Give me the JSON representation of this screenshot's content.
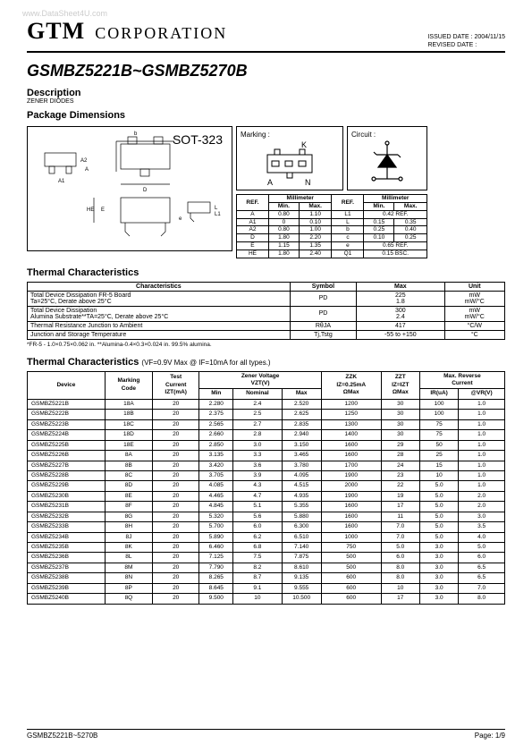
{
  "watermark": "www.DataSheet4U.com",
  "header": {
    "company": "GTM",
    "corporation": "CORPORATION",
    "issued_label": "ISSUED DATE :",
    "issued_date": "2004/11/15",
    "revised_label": "REVISED DATE :"
  },
  "title": "GSMBZ5221B~GSMBZ5270B",
  "description": {
    "heading": "Description",
    "sub": "ZENER DIODES",
    "pkg": "Package Dimensions"
  },
  "package": {
    "sot": "SOT-323",
    "marking_label": "Marking :",
    "marking_k": "K",
    "marking_a": "A",
    "marking_n": "N",
    "circuit_label": "Circuit :"
  },
  "dim_table": {
    "ref": "REF.",
    "mm": "Millimeter",
    "min": "Min.",
    "max": "Max.",
    "rows": [
      [
        "A",
        "0.80",
        "1.10",
        "L1",
        "0.42",
        "REF."
      ],
      [
        "A1",
        "0",
        "0.10",
        "L",
        "0.15",
        "0.35"
      ],
      [
        "A2",
        "0.80",
        "1.00",
        "b",
        "0.25",
        "0.40"
      ],
      [
        "D",
        "1.80",
        "2.20",
        "c",
        "0.10",
        "0.25"
      ],
      [
        "E",
        "1.15",
        "1.35",
        "e",
        "0.65",
        "REF."
      ],
      [
        "HE",
        "1.80",
        "2.40",
        "Q1",
        "0.15 BSC.",
        ""
      ]
    ]
  },
  "thermal1": {
    "heading": "Thermal Characteristics",
    "cols": [
      "Characteristics",
      "Symbol",
      "Max",
      "Unit"
    ],
    "rows": [
      {
        "c": "Total Device Dissipation FR-5 Board\nTa=25°C, Derate above 25°C",
        "s": "PD",
        "m": "225\n1.8",
        "u": "mW\nmW/°C"
      },
      {
        "c": "Total Device Dissipation\nAlumina Substrate**TA=25°C, Derate above 25°C",
        "s": "PD",
        "m": "300\n2.4",
        "u": "mW\nmW/°C"
      },
      {
        "c": "Thermal Resistance Junction to Ambient",
        "s": "RθJA",
        "m": "417",
        "u": "°C/W"
      },
      {
        "c": "Junction and Storage Temperature",
        "s": "Tj,Tstg",
        "m": "-55 to +150",
        "u": "°C"
      }
    ],
    "footnote": "*FR-5 - 1.0×0.75×0.062 in. **Alumina-0.4×0.3×0.024 in. 99.5% alumina."
  },
  "thermal2": {
    "heading": "Thermal Characteristics",
    "subtitle": "(VF=0.9V Max @ IF=10mA for all types.)",
    "head": {
      "device": "Device",
      "marking": "Marking\nCode",
      "test": "Test\nCurrent\nIZT(mA)",
      "zener": "Zener Voltage\nVZT(V)",
      "min": "Min",
      "nom": "Nominal",
      "max": "Max",
      "zzk": "ZZK\nIZ=0.25mA\nΩMax",
      "zzt": "ZZT\nIZ=IZT\nΩMax",
      "rev": "Max. Reverse\nCurrent",
      "ir": "IR(uA)",
      "vr": "@VR(V)"
    },
    "rows": [
      [
        "GSMBZ5221B",
        "18A",
        "20",
        "2.280",
        "2.4",
        "2.520",
        "1200",
        "30",
        "100",
        "1.0"
      ],
      [
        "GSMBZ5222B",
        "18B",
        "20",
        "2.375",
        "2.5",
        "2.625",
        "1250",
        "30",
        "100",
        "1.0"
      ],
      [
        "GSMBZ5223B",
        "18C",
        "20",
        "2.565",
        "2.7",
        "2.835",
        "1300",
        "30",
        "75",
        "1.0"
      ],
      [
        "GSMBZ5224B",
        "18D",
        "20",
        "2.660",
        "2.8",
        "2.940",
        "1400",
        "30",
        "75",
        "1.0"
      ],
      [
        "GSMBZ5225B",
        "18E",
        "20",
        "2.850",
        "3.0",
        "3.150",
        "1600",
        "29",
        "50",
        "1.0"
      ],
      [
        "GSMBZ5226B",
        "8A",
        "20",
        "3.135",
        "3.3",
        "3.465",
        "1600",
        "28",
        "25",
        "1.0"
      ],
      [
        "GSMBZ5227B",
        "8B",
        "20",
        "3.420",
        "3.6",
        "3.780",
        "1700",
        "24",
        "15",
        "1.0"
      ],
      [
        "GSMBZ5228B",
        "8C",
        "20",
        "3.705",
        "3.9",
        "4.095",
        "1900",
        "23",
        "10",
        "1.0"
      ],
      [
        "GSMBZ5229B",
        "8D",
        "20",
        "4.085",
        "4.3",
        "4.515",
        "2000",
        "22",
        "5.0",
        "1.0"
      ],
      [
        "GSMBZ5230B",
        "8E",
        "20",
        "4.465",
        "4.7",
        "4.935",
        "1900",
        "19",
        "5.0",
        "2.0"
      ],
      [
        "GSMBZ5231B",
        "8F",
        "20",
        "4.845",
        "5.1",
        "5.355",
        "1600",
        "17",
        "5.0",
        "2.0"
      ],
      [
        "GSMBZ5232B",
        "8G",
        "20",
        "5.320",
        "5.6",
        "5.880",
        "1600",
        "11",
        "5.0",
        "3.0"
      ],
      [
        "GSMBZ5233B",
        "8H",
        "20",
        "5.700",
        "6.0",
        "6.300",
        "1600",
        "7.0",
        "5.0",
        "3.5"
      ],
      [
        "GSMBZ5234B",
        "8J",
        "20",
        "5.890",
        "6.2",
        "6.510",
        "1000",
        "7.0",
        "5.0",
        "4.0"
      ],
      [
        "GSMBZ5235B",
        "8K",
        "20",
        "6.460",
        "6.8",
        "7.140",
        "750",
        "5.0",
        "3.0",
        "5.0"
      ],
      [
        "GSMBZ5236B",
        "8L",
        "20",
        "7.125",
        "7.5",
        "7.875",
        "500",
        "6.0",
        "3.0",
        "6.0"
      ],
      [
        "GSMBZ5237B",
        "8M",
        "20",
        "7.790",
        "8.2",
        "8.610",
        "500",
        "8.0",
        "3.0",
        "6.5"
      ],
      [
        "GSMBZ5238B",
        "8N",
        "20",
        "8.265",
        "8.7",
        "9.135",
        "600",
        "8.0",
        "3.0",
        "6.5"
      ],
      [
        "GSMBZ5239B",
        "8P",
        "20",
        "8.645",
        "9.1",
        "9.555",
        "600",
        "10",
        "3.0",
        "7.0"
      ],
      [
        "GSMBZ5240B",
        "8Q",
        "20",
        "9.500",
        "10",
        "10.500",
        "600",
        "17",
        "3.0",
        "8.0"
      ]
    ]
  },
  "footer": {
    "left": "GSMBZ5221B~5270B",
    "right": "Page: 1/9"
  }
}
